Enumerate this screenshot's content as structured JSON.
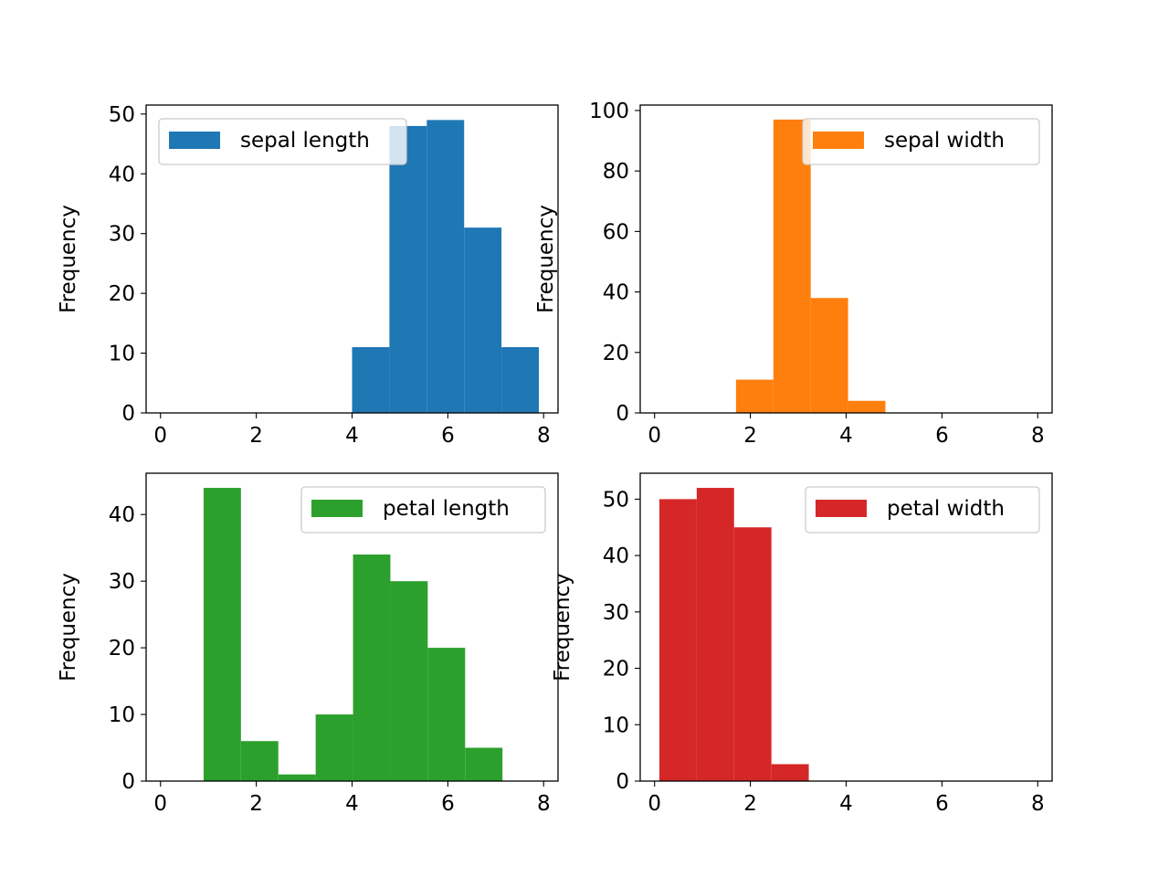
{
  "chart_data": [
    {
      "type": "bar",
      "histogram": true,
      "series_name": "sepal length",
      "color": "#1f77b4",
      "ylabel": "Frequency",
      "xlim": [
        -0.3,
        8.3
      ],
      "ylim": [
        0,
        51.5
      ],
      "xticks": [
        "0",
        "2",
        "4",
        "6",
        "8"
      ],
      "yticks": [
        "0",
        "10",
        "20",
        "30",
        "40",
        "50"
      ],
      "legend_position": "upper left",
      "bins": [
        {
          "x0": 4.0,
          "x1": 4.78,
          "count": 11
        },
        {
          "x0": 4.78,
          "x1": 5.56,
          "count": 48
        },
        {
          "x0": 5.56,
          "x1": 6.34,
          "count": 49
        },
        {
          "x0": 6.34,
          "x1": 7.12,
          "count": 31
        },
        {
          "x0": 7.12,
          "x1": 7.9,
          "count": 11
        }
      ]
    },
    {
      "type": "bar",
      "histogram": true,
      "series_name": "sepal width",
      "color": "#ff7f0e",
      "ylabel": "Frequency",
      "xlim": [
        -0.3,
        8.3
      ],
      "ylim": [
        0,
        101.8
      ],
      "xticks": [
        "0",
        "2",
        "4",
        "6",
        "8"
      ],
      "yticks": [
        "0",
        "20",
        "40",
        "60",
        "80",
        "100"
      ],
      "legend_position": "upper right",
      "bins": [
        {
          "x0": 1.7,
          "x1": 2.48,
          "count": 11
        },
        {
          "x0": 2.48,
          "x1": 3.26,
          "count": 97
        },
        {
          "x0": 3.26,
          "x1": 4.04,
          "count": 38
        },
        {
          "x0": 4.04,
          "x1": 4.82,
          "count": 4
        }
      ]
    },
    {
      "type": "bar",
      "histogram": true,
      "series_name": "petal length",
      "color": "#2ca02c",
      "ylabel": "Frequency",
      "xlim": [
        -0.3,
        8.3
      ],
      "ylim": [
        0,
        46.2
      ],
      "xticks": [
        "0",
        "2",
        "4",
        "6",
        "8"
      ],
      "yticks": [
        "0",
        "10",
        "20",
        "30",
        "40"
      ],
      "legend_position": "upper right",
      "bins": [
        {
          "x0": 0.9,
          "x1": 1.68,
          "count": 44
        },
        {
          "x0": 1.68,
          "x1": 2.46,
          "count": 6
        },
        {
          "x0": 2.46,
          "x1": 3.24,
          "count": 1
        },
        {
          "x0": 3.24,
          "x1": 4.02,
          "count": 10
        },
        {
          "x0": 4.02,
          "x1": 4.8,
          "count": 34
        },
        {
          "x0": 4.8,
          "x1": 5.58,
          "count": 30
        },
        {
          "x0": 5.58,
          "x1": 6.36,
          "count": 20
        },
        {
          "x0": 6.36,
          "x1": 7.14,
          "count": 5
        }
      ]
    },
    {
      "type": "bar",
      "histogram": true,
      "series_name": "petal width",
      "color": "#d62728",
      "ylabel": "Frequency",
      "xlim": [
        -0.3,
        8.3
      ],
      "ylim": [
        0,
        54.6
      ],
      "xticks": [
        "0",
        "2",
        "4",
        "6",
        "8"
      ],
      "yticks": [
        "0",
        "10",
        "20",
        "30",
        "40",
        "50"
      ],
      "legend_position": "upper right",
      "bins": [
        {
          "x0": 0.1,
          "x1": 0.88,
          "count": 50
        },
        {
          "x0": 0.88,
          "x1": 1.66,
          "count": 52
        },
        {
          "x0": 1.66,
          "x1": 2.44,
          "count": 45
        },
        {
          "x0": 2.44,
          "x1": 3.22,
          "count": 3
        }
      ]
    }
  ]
}
